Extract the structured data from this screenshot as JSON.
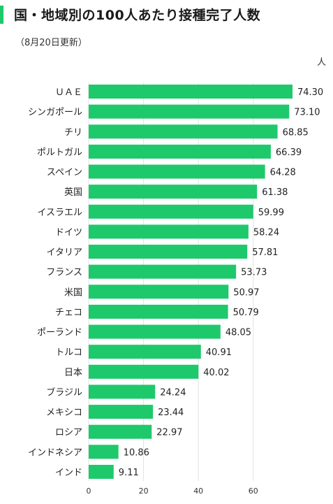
{
  "title": "国・地域別の100人あたり接種完了人数",
  "subtitle": "（8月20日更新）",
  "unit": "人",
  "colors": {
    "bar": "#1ec96b",
    "accent": "#1ec96b",
    "grid": "#e2e2e2",
    "axis": "#555555"
  },
  "chart_data": {
    "type": "bar",
    "orientation": "horizontal",
    "title": "国・地域別の100人あたり接種完了人数",
    "subtitle": "（8月20日更新）",
    "unit": "人",
    "categories": [
      "ＵＡＥ",
      "シンガポール",
      "チリ",
      "ポルトガル",
      "スペイン",
      "英国",
      "イスラエル",
      "ドイツ",
      "イタリア",
      "フランス",
      "米国",
      "チェコ",
      "ポーランド",
      "トルコ",
      "日本",
      "ブラジル",
      "メキシコ",
      "ロシア",
      "インドネシア",
      "インド"
    ],
    "values": [
      74.3,
      73.1,
      68.85,
      66.39,
      64.28,
      61.38,
      59.99,
      58.24,
      57.81,
      53.73,
      50.97,
      50.79,
      48.05,
      40.91,
      40.02,
      24.24,
      23.44,
      22.97,
      10.86,
      9.11
    ],
    "value_labels": [
      "74.30",
      "73.10",
      "68.85",
      "66.39",
      "64.28",
      "61.38",
      "59.99",
      "58.24",
      "57.81",
      "53.73",
      "50.97",
      "50.79",
      "48.05",
      "40.91",
      "40.02",
      "24.24",
      "23.44",
      "22.97",
      "10.86",
      "9.11"
    ],
    "x_ticks": [
      0,
      20,
      40,
      60
    ],
    "xlim": [
      0,
      80
    ],
    "grid": true,
    "legend": "none"
  }
}
